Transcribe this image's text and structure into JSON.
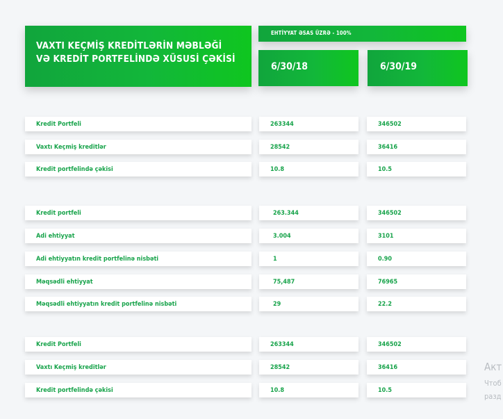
{
  "header": {
    "title_line1": "VAXTI KEÇMİŞ KREDİTLƏRİN MƏBLƏĞİ",
    "title_line2": "VƏ KREDİT PORTFELİNDƏ XÜSUSİ ÇƏKİSİ",
    "reserve_note": "EHTİYYAT ƏSAS ÜZRƏ - 100%",
    "date1": "6/30/18",
    "date2": "6/30/19"
  },
  "sections": [
    {
      "rows": [
        {
          "label": "Kredit Portfeli",
          "v1": "263344",
          "v2": "346502"
        },
        {
          "label": "Vaxtı Keçmiş kreditlər",
          "v1": "28542",
          "v2": "36416"
        },
        {
          "label": "Kredit portfelində çəkisi",
          "v1": "10.8",
          "v2": "10.5"
        }
      ]
    },
    {
      "rows": [
        {
          "label": "Kredit portfeli",
          "v1": "263.344",
          "v2": "346502"
        },
        {
          "label": "Adi ehtiyyat",
          "v1": "3.004",
          "v2": "3101"
        },
        {
          "label": "Adi ehtiyyatın kredit portfelinə nisbəti",
          "v1": "1",
          "v2": "0.90"
        },
        {
          "label": "Məqsədli ehtiyyat",
          "v1": "75,487",
          "v2": "76965"
        },
        {
          "label": "Məqsədli ehtiyyatın kredit portfelinə nisbəti",
          "v1": "29",
          "v2": "22.2"
        }
      ]
    },
    {
      "rows": [
        {
          "label": "Kredit Portfeli",
          "v1": "263344",
          "v2": "346502"
        },
        {
          "label": "Vaxtı Keçmiş kreditlər",
          "v1": "28542",
          "v2": "36416"
        },
        {
          "label": "Kredit portfelində çəkisi",
          "v1": "10.8",
          "v2": "10.5"
        }
      ]
    }
  ],
  "overlay": {
    "line1": "Акт",
    "line2": "Чтоб",
    "line3": "разд"
  }
}
